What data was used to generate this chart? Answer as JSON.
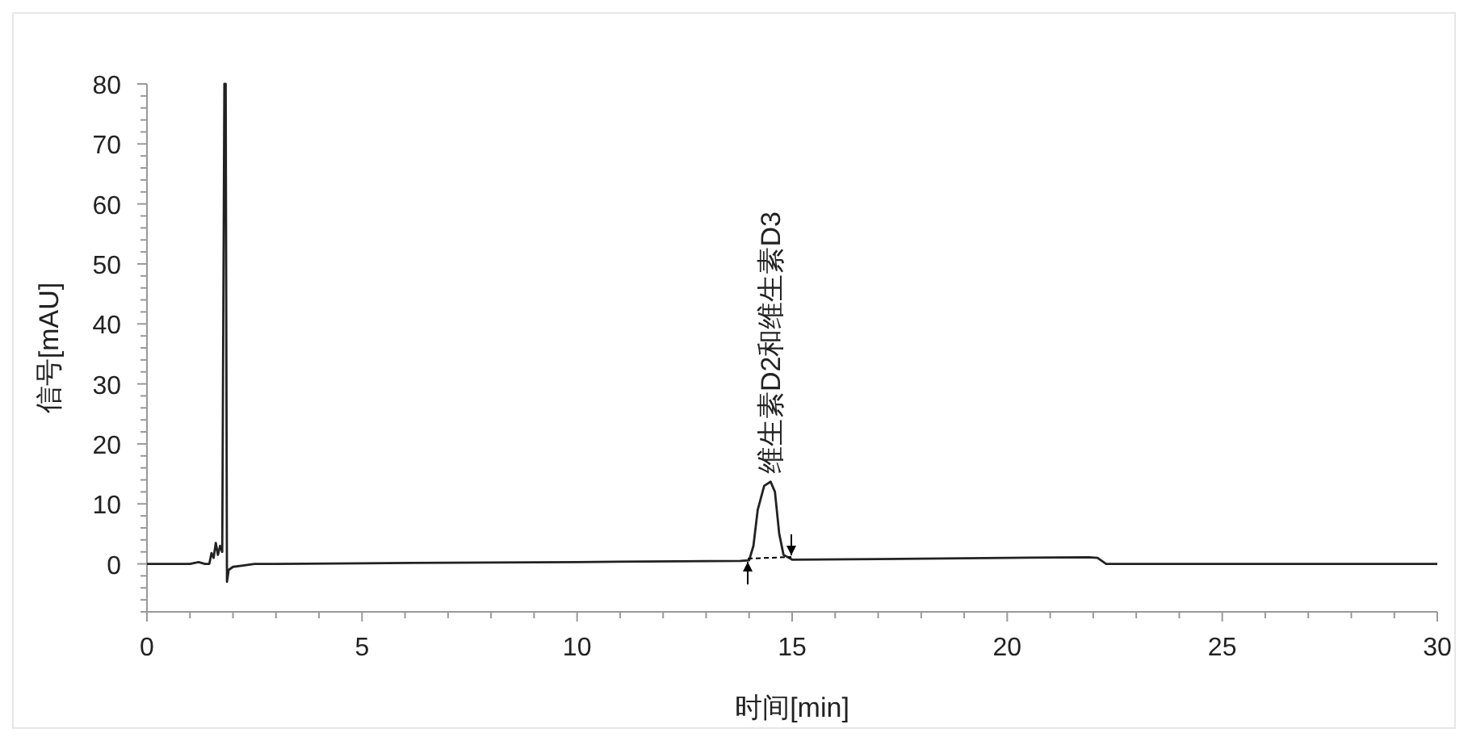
{
  "chart_data": {
    "type": "line",
    "xlabel": "时间[min]",
    "ylabel": "信号[mAU]",
    "xlim": [
      0,
      30
    ],
    "ylim": [
      -8,
      80
    ],
    "xticks": [
      0,
      {
        "value": 1,
        "label": null
      },
      {
        "value": 2,
        "label": null
      },
      {
        "value": 3,
        "label": null
      },
      {
        "value": 4,
        "label": null
      },
      5,
      {
        "value": 6,
        "label": null
      },
      {
        "value": 7,
        "label": null
      },
      {
        "value": 8,
        "label": null
      },
      {
        "value": 9,
        "label": null
      },
      10,
      {
        "value": 11,
        "label": null
      },
      {
        "value": 12,
        "label": null
      },
      {
        "value": 13,
        "label": null
      },
      {
        "value": 14,
        "label": null
      },
      15,
      {
        "value": 16,
        "label": null
      },
      {
        "value": 17,
        "label": null
      },
      {
        "value": 18,
        "label": null
      },
      {
        "value": 19,
        "label": null
      },
      20,
      {
        "value": 21,
        "label": null
      },
      {
        "value": 22,
        "label": null
      },
      {
        "value": 23,
        "label": null
      },
      {
        "value": 24,
        "label": null
      },
      25,
      {
        "value": 26,
        "label": null
      },
      {
        "value": 27,
        "label": null
      },
      {
        "value": 28,
        "label": null
      },
      {
        "value": 29,
        "label": null
      },
      30
    ],
    "yticks": [
      {
        "value": -8,
        "label": null
      },
      {
        "value": -6,
        "label": null
      },
      {
        "value": -4,
        "label": null
      },
      {
        "value": -2,
        "label": null
      },
      0,
      {
        "value": 2,
        "label": null
      },
      {
        "value": 4,
        "label": null
      },
      {
        "value": 6,
        "label": null
      },
      {
        "value": 8,
        "label": null
      },
      10,
      {
        "value": 12,
        "label": null
      },
      {
        "value": 14,
        "label": null
      },
      {
        "value": 16,
        "label": null
      },
      {
        "value": 18,
        "label": null
      },
      20,
      {
        "value": 22,
        "label": null
      },
      {
        "value": 24,
        "label": null
      },
      {
        "value": 26,
        "label": null
      },
      {
        "value": 28,
        "label": null
      },
      30,
      {
        "value": 32,
        "label": null
      },
      {
        "value": 34,
        "label": null
      },
      {
        "value": 36,
        "label": null
      },
      {
        "value": 38,
        "label": null
      },
      40,
      {
        "value": 42,
        "label": null
      },
      {
        "value": 44,
        "label": null
      },
      {
        "value": 46,
        "label": null
      },
      {
        "value": 48,
        "label": null
      },
      50,
      {
        "value": 52,
        "label": null
      },
      {
        "value": 54,
        "label": null
      },
      {
        "value": 56,
        "label": null
      },
      {
        "value": 58,
        "label": null
      },
      60,
      {
        "value": 62,
        "label": null
      },
      {
        "value": 64,
        "label": null
      },
      {
        "value": 66,
        "label": null
      },
      {
        "value": 68,
        "label": null
      },
      70,
      {
        "value": 72,
        "label": null
      },
      {
        "value": 74,
        "label": null
      },
      {
        "value": 76,
        "label": null
      },
      {
        "value": 78,
        "label": null
      },
      80
    ],
    "grid": false,
    "series": [
      {
        "color": "#222222",
        "x": [
          0,
          1,
          1.2,
          1.35,
          1.45,
          1.5,
          1.55,
          1.6,
          1.65,
          1.7,
          1.75,
          1.8,
          1.83,
          1.86,
          1.9,
          2.0,
          2.2,
          2.5,
          3,
          5,
          10,
          13.8,
          14.0,
          14.1,
          14.2,
          14.35,
          14.5,
          14.6,
          14.7,
          14.8,
          15,
          17,
          20,
          21.9,
          22.1,
          22.3,
          25,
          30
        ],
        "values": [
          0,
          0,
          0.3,
          0,
          0,
          1.8,
          1,
          3.5,
          1.5,
          3,
          2,
          80,
          80,
          -3,
          -1,
          -0.5,
          -0.3,
          0,
          0,
          0.1,
          0.3,
          0.5,
          0.6,
          3,
          9,
          13,
          13.7,
          12,
          5,
          1.5,
          0.7,
          0.8,
          1.0,
          1.1,
          1.0,
          0,
          0,
          0
        ]
      }
    ],
    "annotations": [
      {
        "text": "维生素D2和维生素D3",
        "x": 14.5,
        "y": 15
      }
    ]
  }
}
